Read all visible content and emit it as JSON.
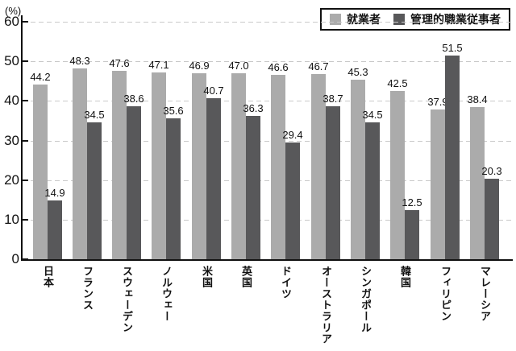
{
  "chart_data": {
    "type": "bar",
    "title": "",
    "unit_label": "(%)",
    "categories": [
      "日本",
      "フランス",
      "スウェーデン",
      "ノルウェー",
      "米国",
      "英国",
      "ドイツ",
      "オーストラリア",
      "シンガポール",
      "韓国",
      "フィリピン",
      "マレーシア"
    ],
    "series": [
      {
        "name": "就業者",
        "color": "#ababab",
        "values": [
          44.2,
          48.3,
          47.6,
          47.1,
          46.9,
          47.0,
          46.6,
          46.7,
          45.3,
          42.5,
          37.9,
          38.4
        ]
      },
      {
        "name": "管理的職業従事者",
        "color": "#58585a",
        "values": [
          14.9,
          34.5,
          38.6,
          35.6,
          40.7,
          36.3,
          29.4,
          38.7,
          34.5,
          12.5,
          51.5,
          20.3
        ]
      }
    ],
    "ylim": [
      0,
      60
    ],
    "ytick_step": 10,
    "ytick_labels": [
      "0",
      "10",
      "20",
      "30",
      "40",
      "50",
      "60"
    ],
    "grid": "dashed-horizontal",
    "legend_position": "top-right",
    "value_labels_shown": true,
    "colors": {
      "axis": "#111111",
      "gridline": "#c9c9c9",
      "background": "#ffffff",
      "text": "#111111"
    }
  }
}
